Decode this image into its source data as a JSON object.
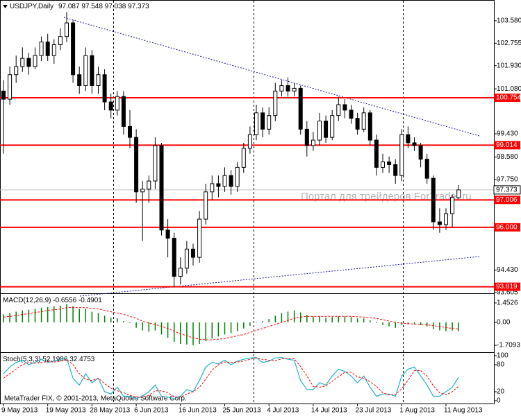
{
  "chart_data": [
    {
      "type": "candlestick",
      "title": "USDJPY,Daily",
      "annotation": "Портал для трейдеров ForTrader.ru",
      "categories": [
        "9 May 2013",
        null,
        null,
        null,
        null,
        null,
        null,
        "19 May 2013",
        null,
        null,
        null,
        null,
        null,
        null,
        "28 May 2013",
        null,
        null,
        null,
        null,
        null,
        null,
        "6 Jun 2013",
        null,
        null,
        null,
        null,
        null,
        null,
        "16 Jun 2013",
        null,
        null,
        null,
        null,
        null,
        null,
        "25 Jun 2013",
        null,
        null,
        null,
        null,
        null,
        null,
        "4 Jul 2013",
        null,
        null,
        null,
        null,
        null,
        null,
        "14 Jul 2013",
        null,
        null,
        null,
        null,
        null,
        null,
        "23 Jul 2013",
        null,
        null,
        null,
        null,
        null,
        null,
        "1 Aug 2013",
        null,
        null,
        null,
        null,
        null,
        null,
        "11 Aug 2013",
        null,
        null
      ],
      "candles": [
        [
          101.0,
          101.4,
          98.7,
          100.7
        ],
        [
          100.7,
          101.9,
          100.5,
          101.6
        ],
        [
          101.6,
          102.3,
          101.3,
          101.9
        ],
        [
          101.9,
          102.6,
          101.7,
          102.2
        ],
        [
          102.2,
          102.4,
          101.6,
          101.9
        ],
        [
          101.9,
          102.6,
          101.8,
          102.3
        ],
        [
          102.3,
          103.0,
          102.1,
          102.8
        ],
        [
          102.8,
          103.1,
          102.1,
          102.3
        ],
        [
          102.3,
          102.9,
          102.0,
          102.7
        ],
        [
          102.7,
          103.3,
          102.5,
          103.0
        ],
        [
          103.0,
          103.9,
          102.8,
          103.5
        ],
        [
          103.5,
          103.6,
          101.3,
          101.6
        ],
        [
          101.6,
          101.9,
          100.9,
          101.2
        ],
        [
          101.2,
          102.6,
          101.0,
          102.3
        ],
        [
          102.3,
          102.5,
          100.9,
          101.2
        ],
        [
          101.2,
          101.9,
          100.9,
          101.6
        ],
        [
          101.6,
          101.8,
          100.3,
          100.6
        ],
        [
          100.6,
          100.9,
          100.0,
          100.3
        ],
        [
          100.3,
          101.0,
          100.1,
          100.8
        ],
        [
          100.8,
          101.0,
          99.4,
          99.7
        ],
        [
          99.7,
          100.3,
          98.9,
          99.3
        ],
        [
          99.3,
          99.6,
          96.9,
          97.3
        ],
        [
          97.3,
          97.7,
          95.5,
          97.4
        ],
        [
          97.4,
          97.9,
          96.9,
          97.7
        ],
        [
          97.7,
          99.3,
          97.4,
          99.0
        ],
        [
          99.0,
          99.1,
          95.7,
          95.9
        ],
        [
          95.9,
          96.3,
          94.9,
          95.6
        ],
        [
          95.6,
          95.8,
          93.8,
          94.2
        ],
        [
          94.2,
          94.9,
          93.9,
          94.5
        ],
        [
          94.5,
          95.5,
          94.3,
          95.2
        ],
        [
          95.2,
          95.4,
          94.6,
          94.9
        ],
        [
          94.9,
          96.6,
          94.7,
          96.3
        ],
        [
          96.3,
          97.6,
          96.1,
          97.3
        ],
        [
          97.3,
          97.9,
          97.0,
          97.6
        ],
        [
          97.6,
          97.9,
          97.1,
          97.5
        ],
        [
          97.5,
          98.2,
          97.3,
          97.9
        ],
        [
          97.9,
          98.1,
          97.2,
          97.5
        ],
        [
          97.5,
          98.4,
          97.3,
          98.2
        ],
        [
          98.2,
          99.1,
          98.0,
          98.9
        ],
        [
          98.9,
          99.7,
          98.7,
          99.4
        ],
        [
          99.4,
          100.5,
          99.2,
          100.2
        ],
        [
          100.2,
          100.4,
          99.3,
          99.6
        ],
        [
          99.6,
          100.4,
          99.4,
          100.1
        ],
        [
          100.1,
          101.3,
          99.9,
          101.0
        ],
        [
          101.0,
          101.4,
          100.8,
          101.2
        ],
        [
          101.2,
          101.5,
          100.8,
          101.0
        ],
        [
          101.0,
          101.3,
          100.8,
          101.1
        ],
        [
          101.1,
          101.2,
          99.4,
          99.6
        ],
        [
          99.6,
          99.9,
          98.6,
          99.0
        ],
        [
          99.0,
          99.5,
          98.8,
          99.2
        ],
        [
          99.2,
          100.2,
          99.0,
          99.9
        ],
        [
          99.9,
          100.1,
          99.1,
          99.3
        ],
        [
          99.3,
          100.3,
          99.2,
          100.1
        ],
        [
          100.1,
          100.8,
          99.9,
          100.5
        ],
        [
          100.5,
          100.7,
          100.0,
          100.3
        ],
        [
          100.3,
          100.5,
          99.8,
          100.0
        ],
        [
          100.0,
          100.2,
          99.4,
          99.6
        ],
        [
          99.6,
          100.4,
          99.5,
          100.2
        ],
        [
          100.2,
          100.3,
          99.0,
          99.2
        ],
        [
          99.2,
          99.4,
          97.9,
          98.2
        ],
        [
          98.2,
          98.7,
          98.0,
          98.4
        ],
        [
          98.4,
          98.6,
          98.0,
          98.3
        ],
        [
          98.3,
          98.5,
          97.6,
          97.9
        ],
        [
          97.9,
          99.6,
          97.7,
          99.4
        ],
        [
          99.4,
          99.7,
          98.9,
          99.1
        ],
        [
          99.1,
          99.3,
          98.8,
          99.0
        ],
        [
          99.0,
          99.1,
          98.2,
          98.5
        ],
        [
          98.5,
          98.7,
          97.6,
          97.8
        ],
        [
          97.8,
          97.9,
          95.9,
          96.2
        ],
        [
          96.2,
          96.7,
          95.8,
          96.1
        ],
        [
          96.1,
          96.7,
          95.9,
          96.5
        ],
        [
          96.5,
          97.2,
          96.0,
          97.1
        ],
        [
          97.087,
          97.548,
          97.038,
          97.373
        ]
      ],
      "levels": [
        100.754,
        99.014,
        97.006,
        {
          "value": 96,
          "label": "96.000"
        },
        93.819
      ],
      "level_color": "#ff0000",
      "ylim": [
        93.605,
        104.29
      ],
      "yticks": [
        {
          "value": 103.58,
          "label": "103.580"
        },
        102.755,
        {
          "value": 101.93,
          "label": "101.930"
        },
        {
          "value": 101.08,
          "label": "101.080"
        },
        {
          "value": 99.43,
          "label": "99.430"
        },
        {
          "value": 98.58,
          "label": "98.580"
        },
        {
          "value": 97.75,
          "label": "97.750"
        },
        {
          "value": 94.43,
          "label": "94.430"
        },
        93.605
      ]
    },
    {
      "type": "macd",
      "title": "MACD(12,26,9)",
      "series": [
        {
          "color": "#008000",
          "values": [
            0.6,
            0.7,
            0.8,
            0.9,
            0.95,
            1.0,
            1.1,
            1.15,
            1.2,
            1.25,
            1.35,
            1.2,
            1.0,
            1.0,
            0.8,
            0.7,
            0.5,
            0.35,
            0.3,
            0.1,
            -0.05,
            -0.4,
            -0.6,
            -0.7,
            -0.6,
            -0.9,
            -1.15,
            -1.45,
            -1.6,
            -1.65,
            -1.7,
            -1.6,
            -1.4,
            -1.2,
            -1.05,
            -0.9,
            -0.8,
            -0.65,
            -0.45,
            -0.25,
            0.0,
            0.1,
            0.25,
            0.5,
            0.7,
            0.8,
            0.9,
            0.75,
            0.55,
            0.45,
            0.45,
            0.35,
            0.4,
            0.45,
            0.45,
            0.4,
            0.3,
            0.3,
            0.15,
            -0.05,
            -0.2,
            -0.3,
            -0.4,
            -0.2,
            -0.15,
            -0.15,
            -0.2,
            -0.3,
            -0.5,
            -0.6,
            -0.65,
            -0.6,
            -0.6556
          ]
        },
        {
          "color": "#ff0000",
          "values": [
            0.4,
            0.45,
            0.5,
            0.6,
            0.65,
            0.75,
            0.8,
            0.9,
            0.95,
            1.0,
            1.1,
            1.12,
            1.1,
            1.1,
            1.05,
            1.0,
            0.9,
            0.8,
            0.7,
            0.6,
            0.45,
            0.3,
            0.1,
            -0.05,
            -0.15,
            -0.3,
            -0.45,
            -0.65,
            -0.85,
            -1.0,
            -1.15,
            -1.25,
            -1.3,
            -1.3,
            -1.25,
            -1.2,
            -1.1,
            -1.0,
            -0.9,
            -0.75,
            -0.6,
            -0.45,
            -0.3,
            -0.15,
            0.0,
            0.15,
            0.3,
            0.4,
            0.45,
            0.45,
            0.45,
            0.45,
            0.45,
            0.45,
            0.45,
            0.45,
            0.42,
            0.4,
            0.35,
            0.3,
            0.2,
            0.1,
            0.0,
            -0.05,
            -0.1,
            -0.12,
            -0.15,
            -0.18,
            -0.25,
            -0.3,
            -0.38,
            -0.45,
            -0.4901
          ]
        }
      ],
      "ylim": [
        -2.12,
        2.07
      ],
      "yticks": [
        1.4526,
        {
          "value": 0,
          "label": "0.00"
        },
        -1.7093
      ]
    },
    {
      "type": "stochastic",
      "title": "Stoch(5,3,3)",
      "annotation": "MetaTrader FIX, © 2001-2013, MetaQuotes Software Corp.",
      "series": [
        {
          "color": "#20b2c8",
          "values": [
            60,
            75,
            85,
            90,
            80,
            85,
            92,
            85,
            88,
            92,
            95,
            50,
            35,
            60,
            40,
            50,
            20,
            15,
            30,
            10,
            10,
            5,
            10,
            20,
            35,
            10,
            8,
            5,
            10,
            25,
            20,
            45,
            75,
            85,
            82,
            90,
            80,
            88,
            92,
            95,
            96,
            85,
            88,
            95,
            96,
            92,
            90,
            45,
            25,
            25,
            40,
            35,
            55,
            70,
            65,
            55,
            40,
            55,
            30,
            10,
            15,
            15,
            10,
            55,
            70,
            75,
            55,
            35,
            10,
            10,
            20,
            30,
            52.1986
          ]
        },
        {
          "color": "#ff0000",
          "values": [
            50,
            60,
            70,
            80,
            85,
            83,
            85,
            87,
            86,
            88,
            92,
            80,
            60,
            48,
            45,
            50,
            38,
            28,
            22,
            18,
            12,
            8,
            8,
            12,
            22,
            22,
            18,
            8,
            8,
            15,
            20,
            30,
            48,
            68,
            80,
            86,
            85,
            86,
            88,
            92,
            95,
            92,
            90,
            89,
            93,
            94,
            93,
            76,
            55,
            32,
            30,
            33,
            43,
            53,
            63,
            63,
            53,
            50,
            42,
            32,
            18,
            13,
            13,
            27,
            45,
            67,
            67,
            55,
            33,
            18,
            13,
            20,
            32.4753
          ]
        }
      ],
      "ylim": [
        0,
        100
      ],
      "yticks": [
        100,
        80,
        20,
        0
      ]
    }
  ]
}
